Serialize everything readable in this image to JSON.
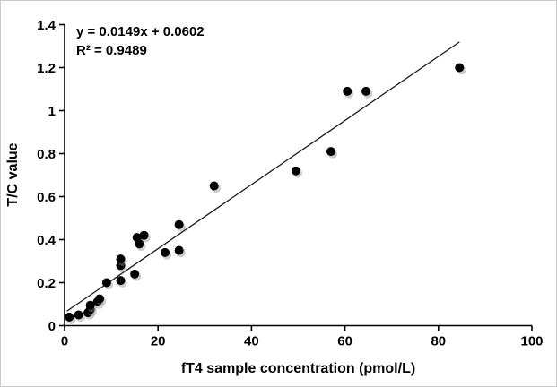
{
  "figure": {
    "background": "#ffffff",
    "border_color": "#c9c9c9",
    "text_color": "#000000"
  },
  "chart_data": {
    "type": "scatter",
    "title": "",
    "xlabel": "fT4 sample concentration (pmol/L)",
    "ylabel": "T/C value",
    "xlim": [
      0,
      100
    ],
    "ylim": [
      0,
      1.4
    ],
    "grid": false,
    "x_ticks": [
      0,
      20,
      40,
      60,
      80,
      100
    ],
    "x_tick_labels": [
      "0",
      "20",
      "40",
      "60",
      "80",
      "100"
    ],
    "y_ticks": [
      0,
      0.2,
      0.4,
      0.6,
      0.8,
      1,
      1.2,
      1.4
    ],
    "y_tick_labels": [
      "0",
      "0.2",
      "0.4",
      "0.6",
      "0.8",
      "1",
      "1.2",
      "1.4"
    ],
    "marker_color": "#000000",
    "marker_shadow_color": "#8a8a8a",
    "points": [
      [
        1,
        0.04
      ],
      [
        3,
        0.05
      ],
      [
        5,
        0.06
      ],
      [
        5.5,
        0.075
      ],
      [
        5.5,
        0.095
      ],
      [
        7,
        0.11
      ],
      [
        7.5,
        0.125
      ],
      [
        9,
        0.2
      ],
      [
        12,
        0.21
      ],
      [
        12,
        0.28
      ],
      [
        12,
        0.31
      ],
      [
        15,
        0.24
      ],
      [
        15.5,
        0.41
      ],
      [
        16,
        0.38
      ],
      [
        17,
        0.42
      ],
      [
        21.5,
        0.34
      ],
      [
        24.5,
        0.35
      ],
      [
        24.5,
        0.47
      ],
      [
        32,
        0.65
      ],
      [
        49.5,
        0.72
      ],
      [
        57,
        0.81
      ],
      [
        60.5,
        1.09
      ],
      [
        64.5,
        1.09
      ],
      [
        84.5,
        1.2
      ]
    ],
    "trendline": {
      "slope": 0.0149,
      "intercept": 0.0602,
      "x_start": 0.5,
      "x_end": 84.5,
      "color": "#1a1a1a"
    },
    "annotation": {
      "equation": "y = 0.0149x + 0.0602",
      "r_squared": "R² = 0.9489"
    }
  }
}
